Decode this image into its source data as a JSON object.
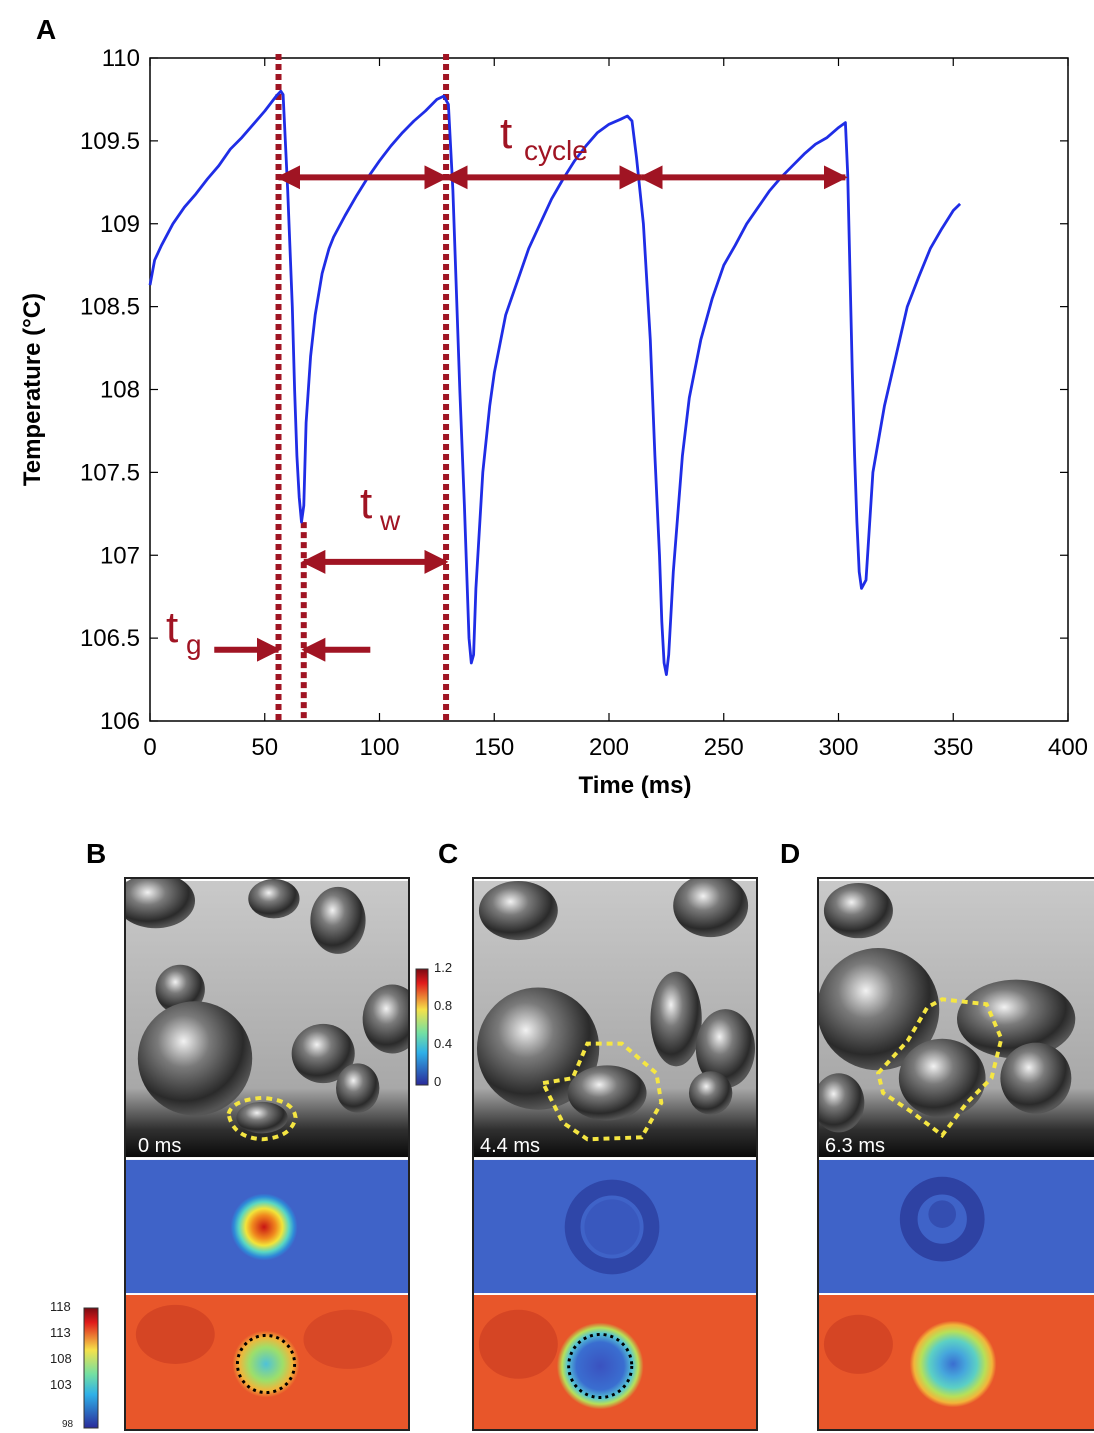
{
  "panels": {
    "a": "A",
    "b": "B",
    "c": "C",
    "d": "D"
  },
  "chart_data": {
    "type": "line",
    "xlabel": "Time (ms)",
    "ylabel": "Temperature (°C)",
    "xlim": [
      0,
      400
    ],
    "ylim": [
      106,
      110
    ],
    "xticks": [
      "0",
      "50",
      "100",
      "150",
      "200",
      "250",
      "300",
      "350",
      "400"
    ],
    "yticks": [
      "106",
      "106.5",
      "107",
      "107.5",
      "108",
      "108.5",
      "109",
      "109.5",
      "110"
    ],
    "series": [
      {
        "color": "#1f2de6",
        "x": [
          0,
          2,
          5,
          10,
          15,
          20,
          25,
          30,
          35,
          40,
          45,
          50,
          55,
          57,
          58,
          60,
          62,
          63,
          64,
          65,
          66,
          67,
          68,
          70,
          72,
          75,
          78,
          80,
          85,
          90,
          95,
          100,
          105,
          110,
          115,
          120,
          125,
          128,
          130,
          132,
          135,
          137,
          138,
          139,
          140,
          141,
          142,
          145,
          148,
          150,
          155,
          160,
          165,
          170,
          175,
          180,
          185,
          190,
          195,
          200,
          205,
          208,
          210,
          212,
          215,
          218,
          220,
          222,
          223,
          224,
          225,
          226,
          228,
          232,
          235,
          240,
          245,
          250,
          255,
          260,
          265,
          270,
          275,
          280,
          285,
          290,
          295,
          300,
          303,
          304,
          305,
          306,
          307,
          308,
          309,
          310,
          312,
          315,
          320,
          325,
          330,
          335,
          340,
          345,
          350,
          353
        ],
        "y": [
          108.63,
          108.78,
          108.87,
          109.0,
          109.1,
          109.18,
          109.27,
          109.35,
          109.45,
          109.52,
          109.6,
          109.68,
          109.77,
          109.8,
          109.78,
          109.2,
          108.5,
          108.0,
          107.6,
          107.35,
          107.2,
          107.3,
          107.8,
          108.2,
          108.45,
          108.7,
          108.85,
          108.92,
          109.05,
          109.17,
          109.28,
          109.38,
          109.47,
          109.55,
          109.62,
          109.68,
          109.75,
          109.77,
          109.72,
          109.2,
          108.0,
          107.3,
          106.9,
          106.5,
          106.35,
          106.4,
          106.8,
          107.5,
          107.9,
          108.1,
          108.45,
          108.65,
          108.85,
          109.0,
          109.15,
          109.27,
          109.38,
          109.47,
          109.55,
          109.6,
          109.63,
          109.65,
          109.62,
          109.4,
          109.0,
          108.3,
          107.6,
          107.0,
          106.6,
          106.35,
          106.28,
          106.4,
          106.9,
          107.6,
          107.95,
          108.3,
          108.55,
          108.75,
          108.87,
          109.0,
          109.1,
          109.2,
          109.28,
          109.35,
          109.42,
          109.48,
          109.52,
          109.58,
          109.61,
          109.3,
          108.7,
          108.1,
          107.6,
          107.2,
          106.9,
          106.8,
          106.85,
          107.5,
          107.9,
          108.2,
          108.5,
          108.68,
          108.85,
          108.97,
          109.08,
          109.12
        ]
      }
    ],
    "dashed_lines_x": [
      56,
      67,
      129
    ],
    "annotations": [
      {
        "text": "t",
        "sub": "cycle"
      },
      {
        "text": "t",
        "sub": "w"
      },
      {
        "text": "t",
        "sub": "g"
      }
    ],
    "arrows": [
      {
        "type": "double",
        "x1": 56,
        "x2": 129,
        "y": 109.28
      },
      {
        "type": "double",
        "x1": 129,
        "x2": 214,
        "y": 109.28
      },
      {
        "type": "double",
        "x1": 214,
        "x2": 303,
        "y": 109.28
      },
      {
        "type": "double",
        "x1": 67,
        "x2": 129,
        "y": 106.96
      },
      {
        "type": "in",
        "x1": 28,
        "x2": 56,
        "y": 106.43
      },
      {
        "type": "in-left",
        "x1": 96,
        "x2": 67,
        "y": 106.43
      }
    ]
  },
  "images": [
    {
      "time_label": "0 ms"
    },
    {
      "time_label": "4.4 ms"
    },
    {
      "time_label": "6.3 ms"
    }
  ],
  "colorbar_ratio": {
    "ticks": [
      "1.2",
      "0.8",
      "0.4",
      "0"
    ]
  },
  "colorbar_temp": {
    "ticks": [
      "118",
      "113",
      "108",
      "103",
      "98"
    ]
  }
}
